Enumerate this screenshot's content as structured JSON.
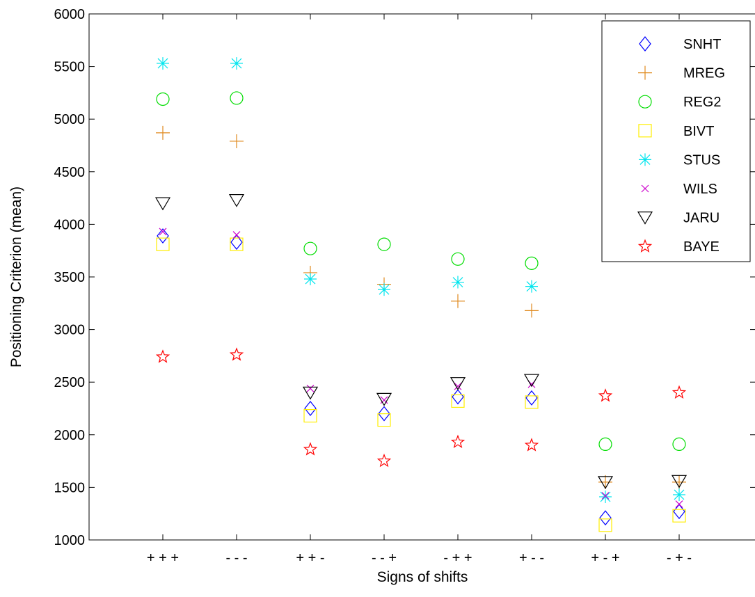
{
  "chart_data": {
    "type": "scatter",
    "title": "",
    "xlabel": "Signs of shifts",
    "ylabel": "Positioning Criterion (mean)",
    "categories": [
      "+ + +",
      "- - -",
      "+ + -",
      "- - +",
      "- + +",
      "+ - -",
      "+ - +",
      "- + -"
    ],
    "ylim": [
      1000,
      6000
    ],
    "yticks": [
      1000,
      1500,
      2000,
      2500,
      3000,
      3500,
      4000,
      4500,
      5000,
      5500,
      6000
    ],
    "grid": false,
    "legend_position": "top-right",
    "series": [
      {
        "name": "SNHT",
        "marker": "diamond",
        "color": "#0000ff",
        "values": [
          3890,
          3830,
          2250,
          2200,
          2360,
          2350,
          1210,
          1270
        ]
      },
      {
        "name": "MREG",
        "marker": "plus",
        "color": "#e08a1e",
        "values": [
          4870,
          4790,
          3540,
          3430,
          3270,
          3180,
          1550,
          1550
        ]
      },
      {
        "name": "REG2",
        "marker": "circle",
        "color": "#00dd00",
        "values": [
          5190,
          5200,
          3770,
          3810,
          3670,
          3630,
          1910,
          1910
        ]
      },
      {
        "name": "BIVT",
        "marker": "square",
        "color": "#ffee00",
        "values": [
          3810,
          3810,
          2180,
          2140,
          2320,
          2310,
          1140,
          1230
        ]
      },
      {
        "name": "STUS",
        "marker": "asterisk",
        "color": "#00e5ee",
        "values": [
          5530,
          5530,
          3480,
          3380,
          3450,
          3410,
          1410,
          1430
        ]
      },
      {
        "name": "WILS",
        "marker": "x",
        "color": "#cc00cc",
        "values": [
          3930,
          3900,
          2440,
          2330,
          2460,
          2480,
          1420,
          1340
        ]
      },
      {
        "name": "JARU",
        "marker": "triangle-down",
        "color": "#000000",
        "values": [
          4200,
          4230,
          2400,
          2340,
          2490,
          2520,
          1550,
          1560
        ]
      },
      {
        "name": "BAYE",
        "marker": "pentagram",
        "color": "#ff0000",
        "values": [
          2740,
          2760,
          1860,
          1750,
          1930,
          1900,
          2370,
          2400
        ]
      }
    ]
  }
}
